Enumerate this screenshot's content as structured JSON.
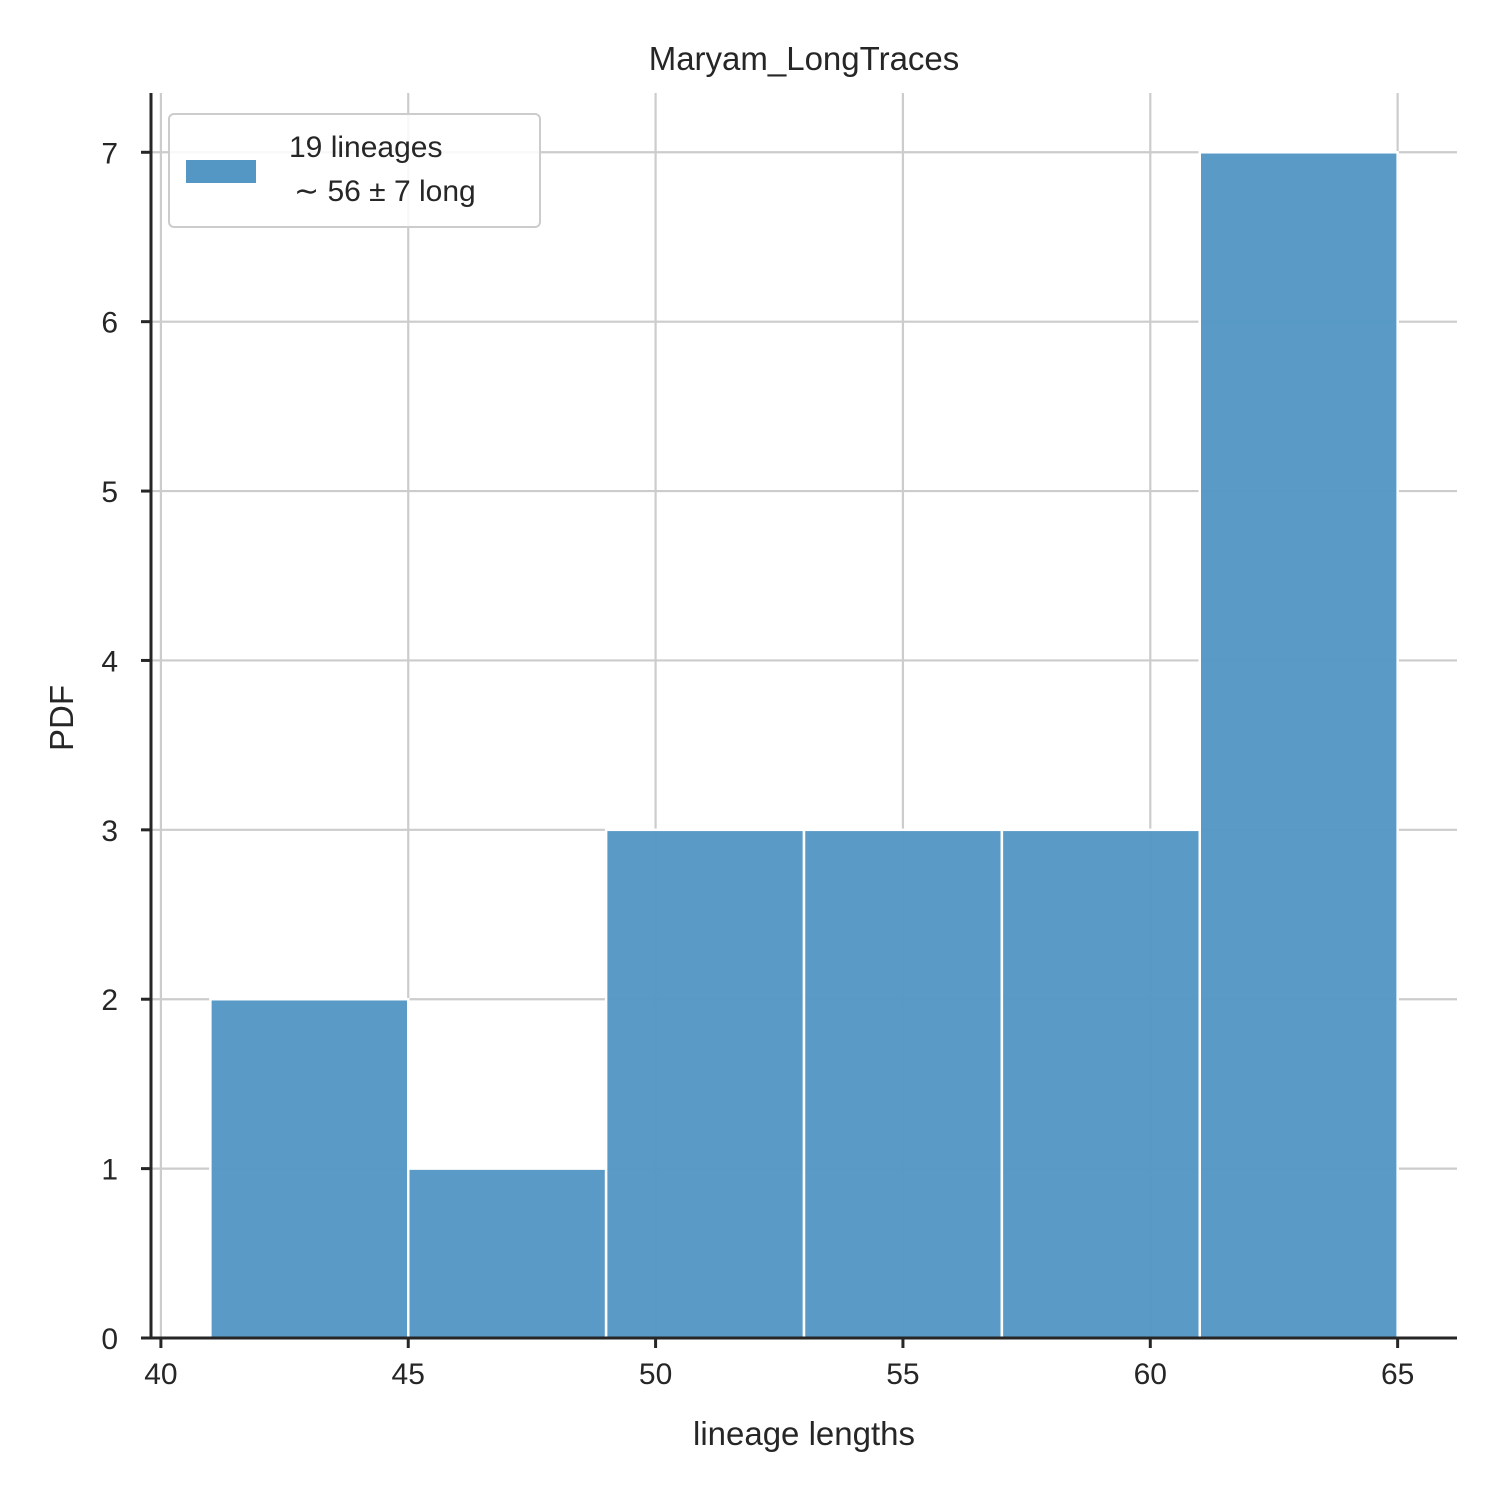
{
  "chart_data": {
    "type": "bar",
    "title": "Maryam_LongTraces",
    "xlabel": "lineage lengths",
    "ylabel": "PDF",
    "xlim": [
      39.8,
      66.2
    ],
    "ylim": [
      0,
      7.35
    ],
    "xticks": [
      40,
      45,
      50,
      55,
      60,
      65
    ],
    "yticks": [
      0,
      1,
      2,
      3,
      4,
      5,
      6,
      7
    ],
    "bins": [
      {
        "start": 41,
        "end": 45,
        "value": 2
      },
      {
        "start": 45,
        "end": 49,
        "value": 1
      },
      {
        "start": 49,
        "end": 53,
        "value": 3
      },
      {
        "start": 53,
        "end": 57,
        "value": 3
      },
      {
        "start": 57,
        "end": 61,
        "value": 3
      },
      {
        "start": 61,
        "end": 65,
        "value": 7
      }
    ],
    "legend": {
      "position": "top-left",
      "line1": "19 lineages",
      "line2": "∼ 56 ± 7 long"
    },
    "grid": true,
    "color": "#5497c5"
  }
}
